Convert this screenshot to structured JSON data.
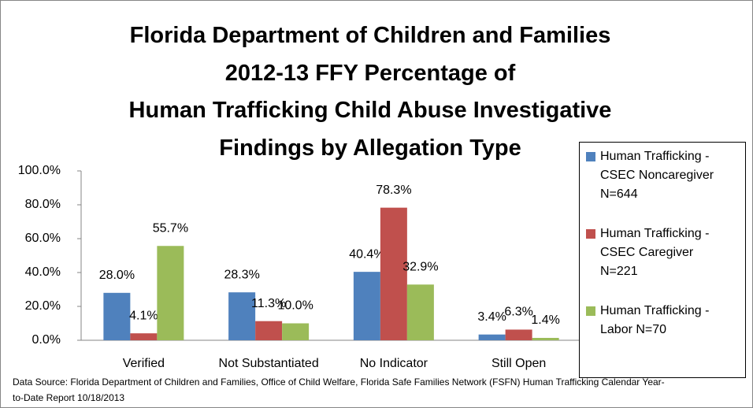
{
  "chart_data": {
    "type": "bar",
    "title": "Florida Department of Children and Families\n2012-13 FFY Percentage of\nHuman Trafficking Child Abuse Investigative\nFindings by Allegation Type",
    "categories": [
      "Verified",
      "Not Substantiated",
      "No Indicator",
      "Still Open"
    ],
    "series": [
      {
        "name": "Human Trafficking - CSEC Noncaregiver N=644",
        "color": "#4f81bd",
        "values": [
          28.0,
          28.3,
          40.4,
          3.4
        ],
        "value_labels": [
          "28.0%",
          "28.3%",
          "40.4%",
          "3.4%"
        ]
      },
      {
        "name": "Human Trafficking - CSEC Caregiver N=221",
        "color": "#c0504d",
        "values": [
          4.1,
          11.3,
          78.3,
          6.3
        ],
        "value_labels": [
          "4.1%",
          "11.3%",
          "78.3%",
          "6.3%"
        ]
      },
      {
        "name": "Human Trafficking - Labor N=70",
        "color": "#9bbb59",
        "values": [
          55.7,
          10.0,
          32.9,
          1.4
        ],
        "value_labels": [
          "55.7%",
          "10.0%",
          "32.9%",
          "1.4%"
        ]
      }
    ],
    "ylim": [
      0,
      100
    ],
    "yticks": [
      {
        "value": 0,
        "label": "0.0%"
      },
      {
        "value": 20,
        "label": "20.0%"
      },
      {
        "value": 40,
        "label": "40.0%"
      },
      {
        "value": 60,
        "label": "60.0%"
      },
      {
        "value": 80,
        "label": "80.0%"
      },
      {
        "value": 100,
        "label": "100.0%"
      }
    ],
    "grid": false,
    "legend": "right",
    "source": "Data Source: Florida Department of Children and Families, Office of Child Welfare, Florida Safe Families Network (FSFN) Human Trafficking Calendar Year-to-Date Report 10/18/2013"
  }
}
